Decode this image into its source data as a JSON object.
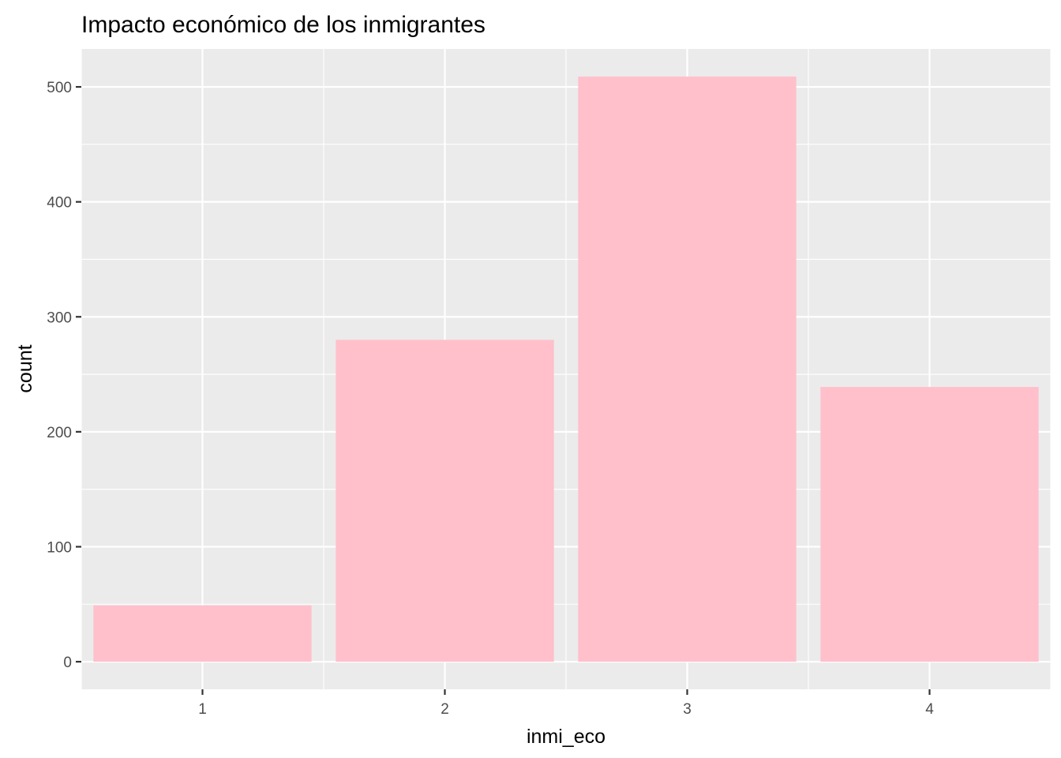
{
  "chart_data": {
    "type": "bar",
    "title": "Impacto económico de los inmigrantes",
    "xlabel": "inmi_eco",
    "ylabel": "count",
    "categories": [
      "1",
      "2",
      "3",
      "4"
    ],
    "values": [
      49,
      280,
      509,
      239
    ],
    "ylim": [
      -24,
      533
    ],
    "xlim": [
      0.5,
      4.5
    ],
    "yticks": [
      0,
      100,
      200,
      300,
      400,
      500
    ],
    "yticks_labels": [
      "0",
      "100",
      "200",
      "300",
      "400",
      "500"
    ],
    "grid": true,
    "legend": "none",
    "bar_color": "#FFC0CB",
    "panel_background": "#EBEBEB"
  }
}
